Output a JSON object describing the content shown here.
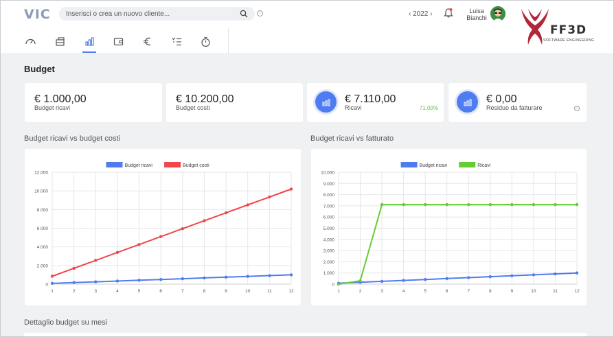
{
  "header": {
    "logo": "VIC",
    "search_placeholder": "Inserisci o crea un nuovo cliente...",
    "year": "2022",
    "year_prev": "‹",
    "year_next": "›",
    "user_first": "Luisa",
    "user_last": "Bianchi",
    "brand": "FF3D",
    "brand_sub": "SOFTWARE ENGINEERING"
  },
  "nav": {
    "items": [
      {
        "icon": "dashboard-icon"
      },
      {
        "icon": "clients-icon"
      },
      {
        "icon": "budget-chart-icon",
        "active": true
      },
      {
        "icon": "wallet-icon"
      },
      {
        "icon": "euro-icon"
      },
      {
        "icon": "checklist-icon"
      },
      {
        "icon": "stopwatch-icon"
      }
    ]
  },
  "page": {
    "title": "Budget",
    "section_bottom": "Dettaglio budget su mesi"
  },
  "cards": [
    {
      "value": "€ 1.000,00",
      "label": "Budget ricavi"
    },
    {
      "value": "€ 10.200,00",
      "label": "Budget costi"
    },
    {
      "value": "€ 7.110,00",
      "label": "Ricavi",
      "pct": "71,00%"
    },
    {
      "value": "€ 0,00",
      "label": "Residuo da fatturare"
    }
  ],
  "colors": {
    "accent": "#4f7cf0",
    "red": "#f0474a",
    "green": "#66cc33"
  },
  "chart_data": [
    {
      "type": "line",
      "title": "Budget ricavi vs budget costi",
      "x": [
        1,
        2,
        3,
        4,
        5,
        6,
        7,
        8,
        9,
        10,
        11,
        12
      ],
      "ylim": [
        0,
        12000
      ],
      "yticks": [
        "0",
        "2.000",
        "4.000",
        "6.000",
        "8.000",
        "10.000",
        "12.000"
      ],
      "ytick_values": [
        0,
        2000,
        4000,
        6000,
        8000,
        10000,
        12000
      ],
      "legend_position": "top",
      "grid": true,
      "series": [
        {
          "name": "Budget ricavi",
          "color": "#4f7cf0",
          "values": [
            83,
            167,
            250,
            333,
            417,
            500,
            583,
            667,
            750,
            833,
            917,
            1000
          ]
        },
        {
          "name": "Budget costi",
          "color": "#f0474a",
          "values": [
            850,
            1700,
            2550,
            3400,
            4250,
            5100,
            5950,
            6800,
            7650,
            8500,
            9350,
            10200
          ]
        }
      ]
    },
    {
      "type": "line",
      "title": "Budget ricavi vs fatturato",
      "x": [
        1,
        2,
        3,
        4,
        5,
        6,
        7,
        8,
        9,
        10,
        11,
        12
      ],
      "ylim": [
        0,
        10000
      ],
      "yticks": [
        "0",
        "1.000",
        "2.000",
        "3.000",
        "4.000",
        "5.000",
        "6.000",
        "7.000",
        "8.000",
        "9.000",
        "10.000"
      ],
      "ytick_values": [
        0,
        1000,
        2000,
        3000,
        4000,
        5000,
        6000,
        7000,
        8000,
        9000,
        10000
      ],
      "legend_position": "top",
      "grid": true,
      "series": [
        {
          "name": "Budget ricavi",
          "color": "#4f7cf0",
          "values": [
            83,
            167,
            250,
            333,
            417,
            500,
            583,
            667,
            750,
            833,
            917,
            1000
          ]
        },
        {
          "name": "Ricavi",
          "color": "#66cc33",
          "values": [
            0,
            300,
            7110,
            7110,
            7110,
            7110,
            7110,
            7110,
            7110,
            7110,
            7110,
            7110
          ]
        }
      ]
    }
  ]
}
